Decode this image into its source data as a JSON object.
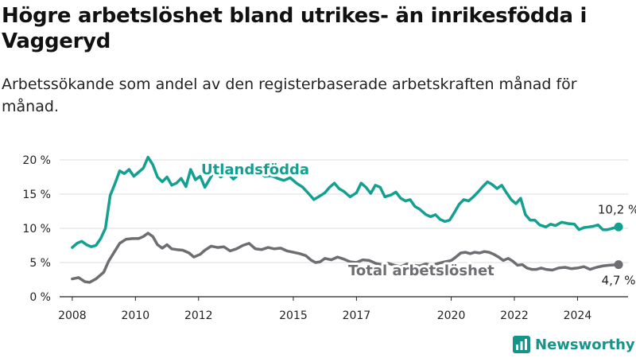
{
  "title": "Högre arbetslöshet bland utrikes- än inrikesfödda i Vaggeryd",
  "subtitle": "Arbetssökande som andel av den registerbaserade arbetskraften månad för månad.",
  "brand": {
    "name": "Newsworthy",
    "icon": "bar-chart-logo-icon"
  },
  "colors": {
    "utlandsfodda": "#14a090",
    "total": "#6d6d72",
    "grid": "#dddddd",
    "axis": "#222222"
  },
  "chart_data": {
    "type": "line",
    "xlim": [
      2007.6,
      2025.6
    ],
    "ylim": [
      0,
      20
    ],
    "grid": true,
    "x_ticks": [
      {
        "value": 2008,
        "label": "2008"
      },
      {
        "value": 2010,
        "label": "2010"
      },
      {
        "value": 2012,
        "label": "2012"
      },
      {
        "value": 2015,
        "label": "2015"
      },
      {
        "value": 2017,
        "label": "2017"
      },
      {
        "value": 2020,
        "label": "2020"
      },
      {
        "value": 2022,
        "label": "2022"
      },
      {
        "value": 2024,
        "label": "2024"
      }
    ],
    "y_ticks": [
      {
        "value": 0,
        "label": "0 %"
      },
      {
        "value": 5,
        "label": "5 %"
      },
      {
        "value": 10,
        "label": "10 %"
      },
      {
        "value": 15,
        "label": "15 %"
      },
      {
        "value": 20,
        "label": "20 %"
      }
    ],
    "series": [
      {
        "key": "utlandsfodda",
        "name": "Utlandsfödda",
        "color": "#14a090",
        "end_label": "10,2 %",
        "points": [
          [
            2008.0,
            7.2
          ],
          [
            2008.15,
            7.8
          ],
          [
            2008.3,
            8.1
          ],
          [
            2008.45,
            7.6
          ],
          [
            2008.6,
            7.3
          ],
          [
            2008.75,
            7.5
          ],
          [
            2008.9,
            8.5
          ],
          [
            2009.05,
            10.0
          ],
          [
            2009.2,
            14.8
          ],
          [
            2009.35,
            16.5
          ],
          [
            2009.5,
            18.4
          ],
          [
            2009.65,
            18.0
          ],
          [
            2009.8,
            18.6
          ],
          [
            2009.95,
            17.6
          ],
          [
            2010.1,
            18.2
          ],
          [
            2010.25,
            18.8
          ],
          [
            2010.4,
            20.4
          ],
          [
            2010.55,
            19.3
          ],
          [
            2010.7,
            17.5
          ],
          [
            2010.85,
            16.8
          ],
          [
            2011.0,
            17.5
          ],
          [
            2011.15,
            16.3
          ],
          [
            2011.3,
            16.6
          ],
          [
            2011.45,
            17.3
          ],
          [
            2011.6,
            16.1
          ],
          [
            2011.75,
            18.6
          ],
          [
            2011.9,
            17.1
          ],
          [
            2012.05,
            17.6
          ],
          [
            2012.2,
            16.0
          ],
          [
            2012.35,
            17.2
          ],
          [
            2012.5,
            18.4
          ],
          [
            2012.7,
            17.5
          ],
          [
            2012.9,
            18.2
          ],
          [
            2013.1,
            17.2
          ],
          [
            2013.3,
            18.0
          ],
          [
            2013.5,
            18.5
          ],
          [
            2013.7,
            17.9
          ],
          [
            2013.9,
            18.2
          ],
          [
            2014.1,
            17.6
          ],
          [
            2014.3,
            17.7
          ],
          [
            2014.5,
            17.3
          ],
          [
            2014.7,
            17.0
          ],
          [
            2014.9,
            17.4
          ],
          [
            2015.1,
            16.6
          ],
          [
            2015.3,
            16.0
          ],
          [
            2015.5,
            15.0
          ],
          [
            2015.65,
            14.2
          ],
          [
            2015.8,
            14.6
          ],
          [
            2016.0,
            15.2
          ],
          [
            2016.15,
            16.0
          ],
          [
            2016.3,
            16.6
          ],
          [
            2016.45,
            15.8
          ],
          [
            2016.6,
            15.4
          ],
          [
            2016.8,
            14.6
          ],
          [
            2017.0,
            15.2
          ],
          [
            2017.15,
            16.6
          ],
          [
            2017.3,
            16.0
          ],
          [
            2017.45,
            15.1
          ],
          [
            2017.6,
            16.3
          ],
          [
            2017.75,
            16.0
          ],
          [
            2017.9,
            14.6
          ],
          [
            2018.1,
            14.9
          ],
          [
            2018.25,
            15.3
          ],
          [
            2018.4,
            14.4
          ],
          [
            2018.55,
            14.0
          ],
          [
            2018.7,
            14.2
          ],
          [
            2018.85,
            13.2
          ],
          [
            2019.0,
            12.8
          ],
          [
            2019.2,
            12.0
          ],
          [
            2019.35,
            11.7
          ],
          [
            2019.5,
            12.0
          ],
          [
            2019.65,
            11.3
          ],
          [
            2019.8,
            11.0
          ],
          [
            2019.95,
            11.2
          ],
          [
            2020.1,
            12.3
          ],
          [
            2020.25,
            13.5
          ],
          [
            2020.4,
            14.2
          ],
          [
            2020.55,
            14.0
          ],
          [
            2020.7,
            14.6
          ],
          [
            2020.85,
            15.3
          ],
          [
            2021.0,
            16.1
          ],
          [
            2021.15,
            16.8
          ],
          [
            2021.3,
            16.4
          ],
          [
            2021.45,
            15.8
          ],
          [
            2021.6,
            16.3
          ],
          [
            2021.75,
            15.2
          ],
          [
            2021.9,
            14.2
          ],
          [
            2022.05,
            13.6
          ],
          [
            2022.2,
            14.4
          ],
          [
            2022.35,
            12.0
          ],
          [
            2022.5,
            11.2
          ],
          [
            2022.65,
            11.2
          ],
          [
            2022.8,
            10.5
          ],
          [
            2023.0,
            10.2
          ],
          [
            2023.15,
            10.6
          ],
          [
            2023.3,
            10.4
          ],
          [
            2023.5,
            10.9
          ],
          [
            2023.7,
            10.7
          ],
          [
            2023.9,
            10.6
          ],
          [
            2024.05,
            9.8
          ],
          [
            2024.2,
            10.1
          ],
          [
            2024.35,
            10.2
          ],
          [
            2024.5,
            10.3
          ],
          [
            2024.65,
            10.5
          ],
          [
            2024.8,
            9.8
          ],
          [
            2024.95,
            9.8
          ],
          [
            2025.1,
            10.0
          ],
          [
            2025.3,
            10.2
          ]
        ]
      },
      {
        "key": "total",
        "name": "Total arbetslöshet",
        "color": "#6d6d72",
        "end_label": "4,7 %",
        "points": [
          [
            2008.0,
            2.6
          ],
          [
            2008.2,
            2.8
          ],
          [
            2008.4,
            2.2
          ],
          [
            2008.55,
            2.1
          ],
          [
            2008.75,
            2.6
          ],
          [
            2009.0,
            3.6
          ],
          [
            2009.15,
            5.2
          ],
          [
            2009.3,
            6.3
          ],
          [
            2009.5,
            7.8
          ],
          [
            2009.7,
            8.4
          ],
          [
            2009.9,
            8.5
          ],
          [
            2010.1,
            8.5
          ],
          [
            2010.25,
            8.8
          ],
          [
            2010.4,
            9.3
          ],
          [
            2010.55,
            8.8
          ],
          [
            2010.7,
            7.6
          ],
          [
            2010.85,
            7.1
          ],
          [
            2011.0,
            7.6
          ],
          [
            2011.15,
            7.0
          ],
          [
            2011.3,
            6.9
          ],
          [
            2011.5,
            6.8
          ],
          [
            2011.7,
            6.4
          ],
          [
            2011.85,
            5.8
          ],
          [
            2012.05,
            6.2
          ],
          [
            2012.2,
            6.8
          ],
          [
            2012.4,
            7.4
          ],
          [
            2012.6,
            7.2
          ],
          [
            2012.8,
            7.3
          ],
          [
            2013.0,
            6.7
          ],
          [
            2013.2,
            7.0
          ],
          [
            2013.4,
            7.5
          ],
          [
            2013.6,
            7.8
          ],
          [
            2013.8,
            7.0
          ],
          [
            2014.0,
            6.9
          ],
          [
            2014.2,
            7.2
          ],
          [
            2014.4,
            7.0
          ],
          [
            2014.6,
            7.1
          ],
          [
            2014.8,
            6.7
          ],
          [
            2015.0,
            6.5
          ],
          [
            2015.2,
            6.3
          ],
          [
            2015.4,
            6.0
          ],
          [
            2015.55,
            5.4
          ],
          [
            2015.7,
            5.0
          ],
          [
            2015.85,
            5.1
          ],
          [
            2016.0,
            5.6
          ],
          [
            2016.2,
            5.4
          ],
          [
            2016.4,
            5.8
          ],
          [
            2016.6,
            5.5
          ],
          [
            2016.8,
            5.1
          ],
          [
            2017.0,
            5.0
          ],
          [
            2017.2,
            5.4
          ],
          [
            2017.4,
            5.3
          ],
          [
            2017.6,
            4.9
          ],
          [
            2017.8,
            4.7
          ],
          [
            2018.0,
            4.9
          ],
          [
            2018.2,
            4.6
          ],
          [
            2018.4,
            4.4
          ],
          [
            2018.6,
            4.8
          ],
          [
            2018.8,
            4.6
          ],
          [
            2019.0,
            4.5
          ],
          [
            2019.2,
            4.8
          ],
          [
            2019.4,
            4.6
          ],
          [
            2019.6,
            4.9
          ],
          [
            2019.8,
            5.1
          ],
          [
            2020.0,
            5.3
          ],
          [
            2020.15,
            5.8
          ],
          [
            2020.3,
            6.4
          ],
          [
            2020.45,
            6.5
          ],
          [
            2020.6,
            6.3
          ],
          [
            2020.75,
            6.5
          ],
          [
            2020.9,
            6.4
          ],
          [
            2021.05,
            6.6
          ],
          [
            2021.2,
            6.5
          ],
          [
            2021.35,
            6.2
          ],
          [
            2021.5,
            5.8
          ],
          [
            2021.65,
            5.3
          ],
          [
            2021.8,
            5.6
          ],
          [
            2021.95,
            5.2
          ],
          [
            2022.1,
            4.6
          ],
          [
            2022.25,
            4.7
          ],
          [
            2022.4,
            4.2
          ],
          [
            2022.55,
            4.0
          ],
          [
            2022.7,
            4.0
          ],
          [
            2022.85,
            4.2
          ],
          [
            2023.0,
            4.0
          ],
          [
            2023.2,
            3.9
          ],
          [
            2023.4,
            4.2
          ],
          [
            2023.6,
            4.3
          ],
          [
            2023.8,
            4.1
          ],
          [
            2024.0,
            4.2
          ],
          [
            2024.2,
            4.4
          ],
          [
            2024.4,
            4.0
          ],
          [
            2024.6,
            4.3
          ],
          [
            2024.8,
            4.5
          ],
          [
            2025.0,
            4.6
          ],
          [
            2025.3,
            4.7
          ]
        ]
      }
    ]
  }
}
